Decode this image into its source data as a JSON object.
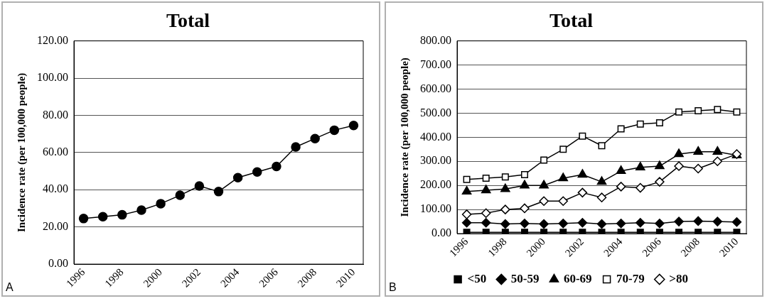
{
  "chart_data": [
    {
      "type": "line",
      "title": "Total",
      "ylabel": "Incidence rate (per 100,000 people)",
      "annotations": [
        "A"
      ],
      "categories": [
        "1996",
        null,
        "1998",
        null,
        "2000",
        null,
        "2002",
        null,
        "2004",
        null,
        "2006",
        null,
        "2008",
        null,
        "2010"
      ],
      "series": [
        {
          "color": "#000000",
          "values": [
            24.5,
            25.5,
            26.5,
            29,
            32.5,
            37,
            42,
            39,
            46.5,
            49.5,
            52.5,
            63,
            67.5,
            72,
            74.5
          ]
        }
      ],
      "ylim": [
        0,
        120
      ],
      "yticks": [
        {
          "value": 0,
          "label": "0.00"
        },
        {
          "value": 20,
          "label": "20.00"
        },
        {
          "value": 40,
          "label": "40.00"
        },
        {
          "value": 60,
          "label": "60.00"
        },
        {
          "value": 80,
          "label": "80.00"
        },
        {
          "value": 100,
          "label": "100.00"
        },
        {
          "value": 120,
          "label": "120.00"
        }
      ],
      "grid": "y",
      "legend": false,
      "marker": "circle",
      "line_style": "solid"
    },
    {
      "type": "line",
      "title": "Total",
      "ylabel": "Incidence rate (per 100,000 people)",
      "annotations": [
        "B"
      ],
      "categories": [
        "1996",
        null,
        "1998",
        null,
        "2000",
        null,
        "2002",
        null,
        "2004",
        null,
        "2006",
        null,
        "2008",
        null,
        "2010"
      ],
      "series": [
        {
          "name": "<50",
          "color": "#000000",
          "marker": "square",
          "values": [
            5,
            5,
            5,
            5,
            5,
            5,
            5,
            5,
            5,
            5,
            5,
            5,
            5,
            5,
            5
          ]
        },
        {
          "name": "50-59",
          "color": "#000000",
          "marker": "diamond",
          "values": [
            45,
            45,
            40,
            42,
            40,
            42,
            45,
            40,
            42,
            45,
            42,
            50,
            52,
            50,
            48
          ]
        },
        {
          "name": "60-69",
          "color": "#000000",
          "marker": "triangle",
          "values": [
            175,
            180,
            185,
            200,
            200,
            230,
            245,
            215,
            260,
            275,
            280,
            330,
            340,
            340,
            325
          ]
        },
        {
          "name": "70-79",
          "color": "#ffffff",
          "marker": "square",
          "values": [
            225,
            230,
            235,
            245,
            305,
            350,
            405,
            365,
            435,
            455,
            460,
            505,
            510,
            515,
            505
          ]
        },
        {
          "name": ">80",
          "color": "#ffffff",
          "marker": "diamond",
          "values": [
            80,
            85,
            100,
            105,
            135,
            135,
            170,
            150,
            195,
            190,
            215,
            280,
            270,
            300,
            330
          ]
        }
      ],
      "ylim": [
        0,
        800
      ],
      "yticks": [
        {
          "value": 0,
          "label": "0.00"
        },
        {
          "value": 100,
          "label": "100.00"
        },
        {
          "value": 200,
          "label": "200.00"
        },
        {
          "value": 300,
          "label": "300.00"
        },
        {
          "value": 400,
          "label": "400.00"
        },
        {
          "value": 500,
          "label": "500.00"
        },
        {
          "value": 600,
          "label": "600.00"
        },
        {
          "value": 700,
          "label": "700.00"
        },
        {
          "value": 800,
          "label": "800.00"
        }
      ],
      "grid": "y",
      "legend": "bottom",
      "line_style": "solid"
    }
  ]
}
